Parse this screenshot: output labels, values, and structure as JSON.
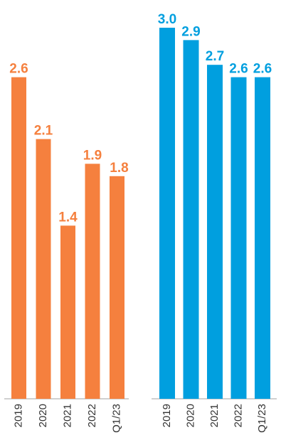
{
  "chart_data": [
    {
      "type": "bar",
      "categories": [
        "2019",
        "2020",
        "2021",
        "2022",
        "Q1/23"
      ],
      "values": [
        2.6,
        2.1,
        1.4,
        1.9,
        1.8
      ],
      "value_labels": [
        "2.6",
        "2.1",
        "1.4",
        "1.9",
        "1.8"
      ],
      "color": "#f5803e",
      "ylim": [
        0,
        3.0
      ],
      "grid": false,
      "legend": "none",
      "title": "",
      "xlabel": "",
      "ylabel": ""
    },
    {
      "type": "bar",
      "categories": [
        "2019",
        "2020",
        "2021",
        "2022",
        "Q1/23"
      ],
      "values": [
        3.0,
        2.9,
        2.7,
        2.6,
        2.6
      ],
      "value_labels": [
        "3.0",
        "2.9",
        "2.7",
        "2.6",
        "2.6"
      ],
      "color": "#009fdf",
      "ylim": [
        0,
        3.0
      ],
      "grid": false,
      "legend": "none",
      "title": "",
      "xlabel": "",
      "ylabel": ""
    }
  ]
}
